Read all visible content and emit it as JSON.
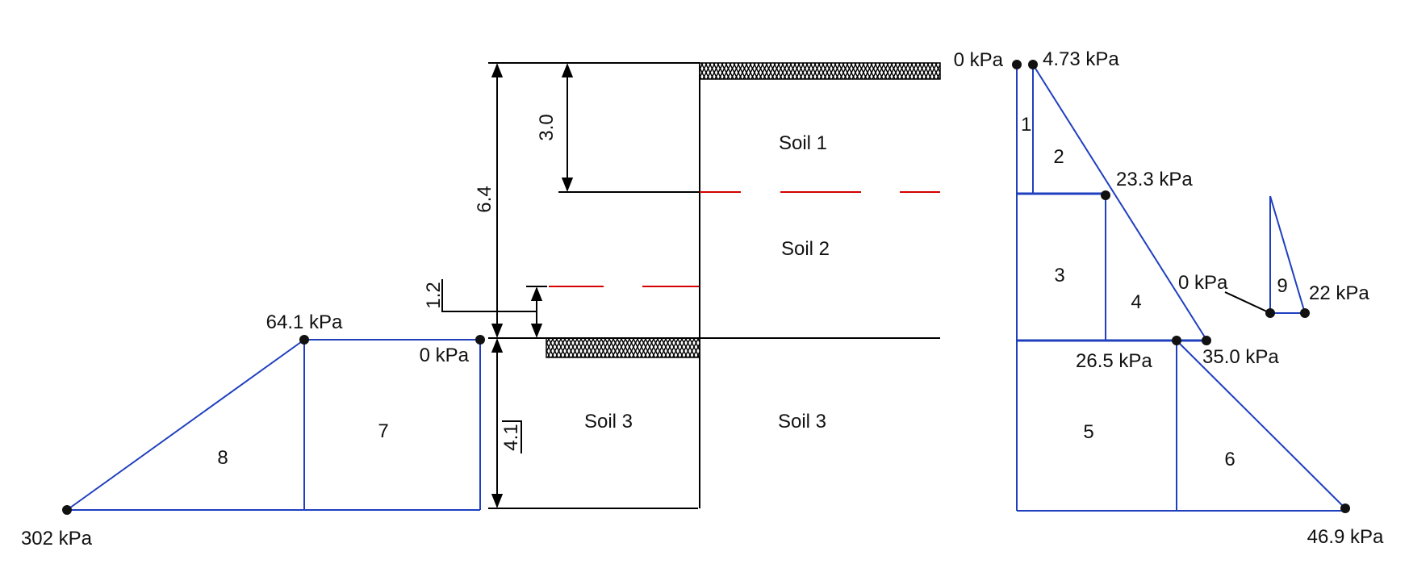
{
  "soils": {
    "soil1": "Soil 1",
    "soil2": "Soil 2",
    "soil3_left": "Soil 3",
    "soil3_right": "Soil 3"
  },
  "dimensions": {
    "d_3_0": "3.0",
    "d_6_4": "6.4",
    "d_1_2": "1.2",
    "d_4_1": "4.1"
  },
  "pressures": {
    "p_0_top": "0 kPa",
    "p_4_73": "4.73 kPa",
    "p_23_3": "23.3 kPa",
    "p_0_mid": "0 kPa",
    "p_22": "22 kPa",
    "p_26_5": "26.5 kPa",
    "p_35_0": "35.0 kPa",
    "p_46_9": "46.9 kPa",
    "p_64_1": "64.1 kPa",
    "p_0_left": "0 kPa",
    "p_302": "302 kPa"
  },
  "areas": {
    "a1": "1",
    "a2": "2",
    "a3": "3",
    "a4": "4",
    "a5": "5",
    "a6": "6",
    "a7": "7",
    "a8": "8",
    "a9": "9"
  },
  "colors": {
    "diagram_lines": "#1f3fbf",
    "water_table": "#d40000",
    "structure": "#000000"
  }
}
